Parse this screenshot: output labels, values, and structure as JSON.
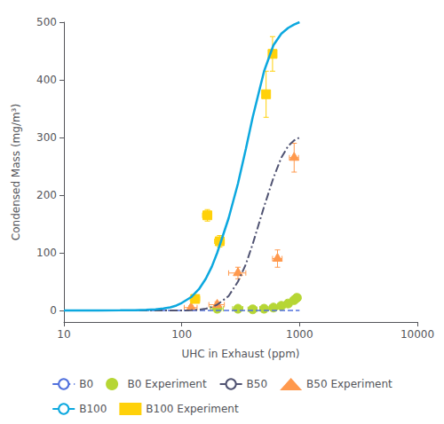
{
  "chart_data": {
    "type": "line",
    "xlabel": "UHC in Exhaust (ppm)",
    "ylabel": "Condensed Mass (mg/m³)",
    "log": "x",
    "xlim": [
      10,
      10000
    ],
    "xticks": [
      10,
      100,
      1000,
      10000
    ],
    "ylim": [
      -20,
      500
    ],
    "yticks": [
      0,
      100,
      200,
      300,
      400,
      500
    ],
    "grid": false,
    "legend": "bottom",
    "series": [
      {
        "name": "B0",
        "type": "line",
        "line_style": "dashed",
        "x": [
          10,
          15,
          20,
          30,
          40,
          50,
          60,
          70,
          80,
          90,
          100,
          120,
          140,
          160,
          180,
          200,
          250,
          300,
          350,
          400,
          500,
          600,
          700,
          800,
          900,
          1000
        ],
        "values": [
          0,
          0,
          0,
          0,
          0,
          0,
          0,
          0,
          0,
          0,
          0,
          0,
          0,
          0,
          0,
          0,
          0,
          0,
          0,
          0,
          0,
          0,
          0,
          0,
          0,
          0
        ]
      },
      {
        "name": "B0 Experiment",
        "type": "scatter",
        "marker": "circle",
        "x": [
          200,
          300,
          400,
          500,
          600,
          700,
          800,
          900,
          950
        ],
        "values": [
          3,
          3,
          2,
          3,
          5,
          8,
          12,
          18,
          22
        ],
        "xerr": [
          25,
          30,
          35,
          40,
          45,
          50,
          55,
          60,
          65
        ],
        "yerr": [
          1,
          1,
          1,
          1,
          2,
          2,
          3,
          3,
          4
        ]
      },
      {
        "name": "B50",
        "type": "line",
        "line_style": "dashdot",
        "x": [
          10,
          15,
          20,
          30,
          40,
          50,
          60,
          70,
          80,
          90,
          100,
          120,
          140,
          160,
          180,
          200,
          250,
          300,
          350,
          400,
          500,
          600,
          700,
          800,
          900,
          1000
        ],
        "values": [
          0,
          0,
          0,
          0,
          0,
          0,
          0,
          0,
          0,
          0,
          0,
          0.5,
          1.5,
          3,
          6,
          10,
          25,
          50,
          80,
          115,
          180,
          230,
          265,
          285,
          295,
          300
        ]
      },
      {
        "name": "B50 Experiment",
        "type": "scatter",
        "marker": "triangle",
        "x": [
          120,
          200,
          300,
          650,
          900
        ],
        "values": [
          5,
          10,
          65,
          90,
          265
        ],
        "xerr": [
          15,
          30,
          50,
          60,
          80
        ],
        "yerr": [
          3,
          5,
          10,
          15,
          25
        ]
      },
      {
        "name": "B100",
        "type": "line",
        "line_style": "solid",
        "x": [
          10,
          15,
          20,
          30,
          40,
          50,
          60,
          70,
          80,
          90,
          100,
          120,
          140,
          160,
          180,
          200,
          250,
          300,
          350,
          400,
          500,
          600,
          700,
          800,
          900,
          1000
        ],
        "values": [
          0,
          0,
          0,
          0.2,
          0.5,
          1.2,
          2,
          3.5,
          5.5,
          8.5,
          13,
          23,
          37,
          55,
          76,
          100,
          160,
          220,
          280,
          335,
          415,
          460,
          480,
          490,
          496,
          500
        ]
      },
      {
        "name": "B100 Experiment",
        "type": "scatter",
        "marker": "square",
        "x": [
          130,
          165,
          210,
          520,
          590
        ],
        "values": [
          20,
          165,
          120,
          375,
          445
        ],
        "xerr": [
          12,
          15,
          20,
          30,
          30
        ],
        "yerr": [
          5,
          10,
          10,
          40,
          30
        ]
      }
    ]
  }
}
